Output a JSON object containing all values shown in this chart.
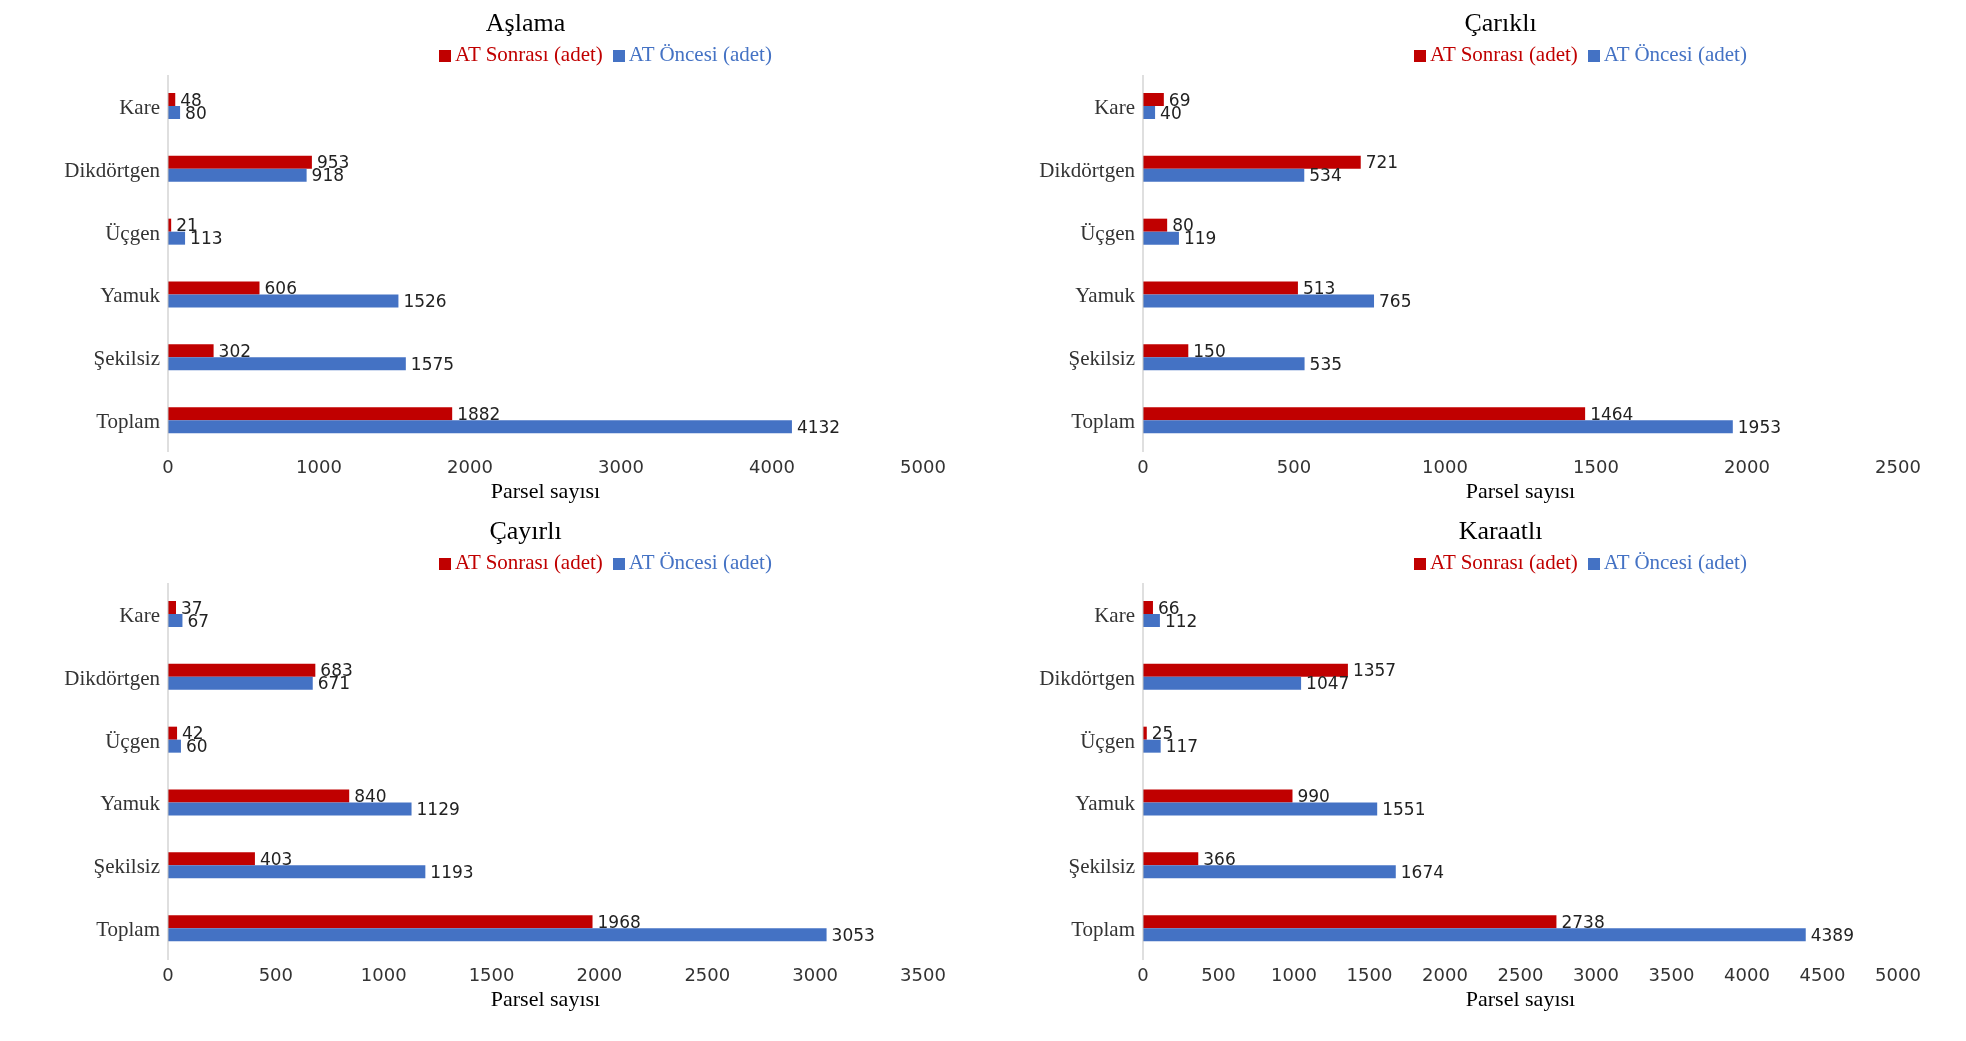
{
  "chart_data": [
    {
      "type": "bar",
      "orientation": "horizontal",
      "title": "Aşlama",
      "xlabel": "Parsel sayısı",
      "categories": [
        "Kare",
        "Dikdörtgen",
        "Üçgen",
        "Yamuk",
        "Şekilsiz",
        "Toplam"
      ],
      "xlim": [
        0,
        5000
      ],
      "xticks": [
        0,
        1000,
        2000,
        3000,
        4000,
        5000
      ],
      "legend": "top",
      "grid": false,
      "data_labels": true,
      "series": [
        {
          "name": "AT Sonrası (adet)",
          "color": "#c00000",
          "values": [
            48,
            953,
            21,
            606,
            302,
            1882
          ]
        },
        {
          "name": "AT Öncesi (adet)",
          "color": "#4472c4",
          "values": [
            80,
            918,
            113,
            1526,
            1575,
            4132
          ]
        }
      ]
    },
    {
      "type": "bar",
      "orientation": "horizontal",
      "title": "Çarıklı",
      "xlabel": "Parsel sayısı",
      "categories": [
        "Kare",
        "Dikdörtgen",
        "Üçgen",
        "Yamuk",
        "Şekilsiz",
        "Toplam"
      ],
      "xlim": [
        0,
        2500
      ],
      "xticks": [
        0,
        500,
        1000,
        1500,
        2000,
        2500
      ],
      "legend": "top",
      "grid": false,
      "data_labels": true,
      "series": [
        {
          "name": "AT Sonrası (adet)",
          "color": "#c00000",
          "values": [
            69,
            721,
            80,
            513,
            150,
            1464
          ]
        },
        {
          "name": "AT Öncesi (adet)",
          "color": "#4472c4",
          "values": [
            40,
            534,
            119,
            765,
            535,
            1953
          ]
        }
      ]
    },
    {
      "type": "bar",
      "orientation": "horizontal",
      "title": "Çayırlı",
      "xlabel": "Parsel sayısı",
      "categories": [
        "Kare",
        "Dikdörtgen",
        "Üçgen",
        "Yamuk",
        "Şekilsiz",
        "Toplam"
      ],
      "xlim": [
        0,
        3500
      ],
      "xticks": [
        0,
        500,
        1000,
        1500,
        2000,
        2500,
        3000,
        3500
      ],
      "legend": "top",
      "grid": false,
      "data_labels": true,
      "series": [
        {
          "name": "AT Sonrası (adet)",
          "color": "#c00000",
          "values": [
            37,
            683,
            42,
            840,
            403,
            1968
          ]
        },
        {
          "name": "AT Öncesi (adet)",
          "color": "#4472c4",
          "values": [
            67,
            671,
            60,
            1129,
            1193,
            3053
          ]
        }
      ]
    },
    {
      "type": "bar",
      "orientation": "horizontal",
      "title": "Karaatlı",
      "xlabel": "Parsel sayısı",
      "categories": [
        "Kare",
        "Dikdörtgen",
        "Üçgen",
        "Yamuk",
        "Şekilsiz",
        "Toplam"
      ],
      "xlim": [
        0,
        5000
      ],
      "xticks": [
        0,
        500,
        1000,
        1500,
        2000,
        2500,
        3000,
        3500,
        4000,
        4500,
        5000
      ],
      "legend": "top",
      "grid": false,
      "data_labels": true,
      "series": [
        {
          "name": "AT Sonrası (adet)",
          "color": "#c00000",
          "values": [
            66,
            1357,
            25,
            990,
            366,
            2738
          ]
        },
        {
          "name": "AT Öncesi (adet)",
          "color": "#4472c4",
          "values": [
            112,
            1047,
            117,
            1551,
            1674,
            4389
          ]
        }
      ]
    }
  ]
}
